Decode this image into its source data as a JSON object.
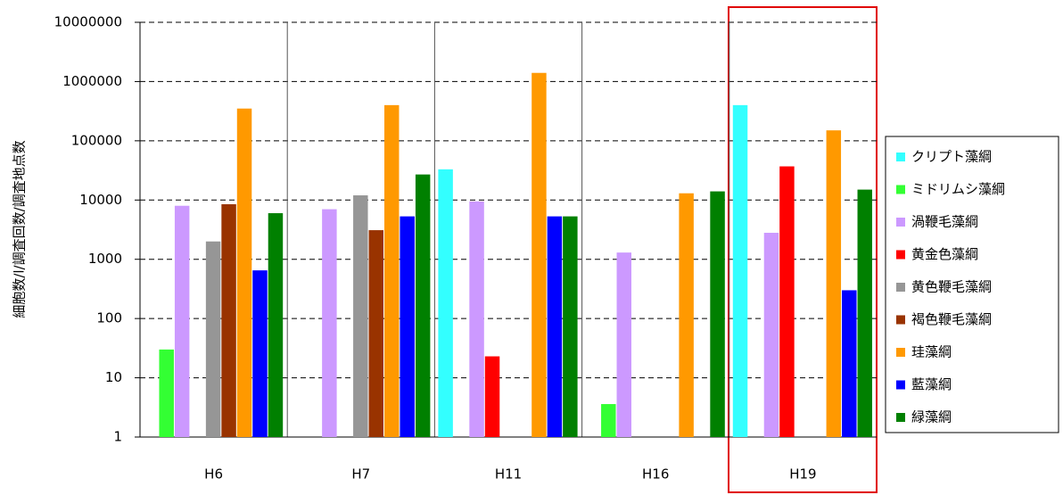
{
  "chart_data": {
    "type": "bar",
    "ylabel": "細胞数/l/調査回数/調査地点数",
    "categories": [
      "H6",
      "H7",
      "H11",
      "H16",
      "H19"
    ],
    "series": [
      {
        "name": "クリプト藻綱",
        "color": "#33ffff",
        "values": [
          null,
          null,
          33000,
          null,
          400000
        ]
      },
      {
        "name": "ミドリムシ藻綱",
        "color": "#33ff33",
        "values": [
          30,
          null,
          null,
          3.6,
          null
        ]
      },
      {
        "name": "渦鞭毛藻綱",
        "color": "#cc99ff",
        "values": [
          8000,
          7000,
          9500,
          1300,
          2800
        ]
      },
      {
        "name": "黄金色藻綱",
        "color": "#ff0000",
        "values": [
          null,
          null,
          23,
          null,
          37000
        ]
      },
      {
        "name": "黄色鞭毛藻綱",
        "color": "#969696",
        "values": [
          2000,
          12000,
          null,
          null,
          null
        ]
      },
      {
        "name": "褐色鞭毛藻綱",
        "color": "#993300",
        "values": [
          8500,
          3100,
          null,
          null,
          null
        ]
      },
      {
        "name": "珪藻綱",
        "color": "#ff9900",
        "values": [
          350000,
          400000,
          1400000,
          13000,
          150000
        ]
      },
      {
        "name": "藍藻綱",
        "color": "#0000ff",
        "values": [
          650,
          5300,
          5300,
          null,
          300
        ]
      },
      {
        "name": "緑藻綱",
        "color": "#008000",
        "values": [
          6000,
          27000,
          5300,
          14000,
          15000
        ]
      }
    ],
    "ylog": true,
    "ylim": [
      1,
      10000000
    ],
    "yticks": [
      1,
      10,
      100,
      1000,
      10000,
      100000,
      1000000,
      10000000
    ],
    "grid": true
  }
}
